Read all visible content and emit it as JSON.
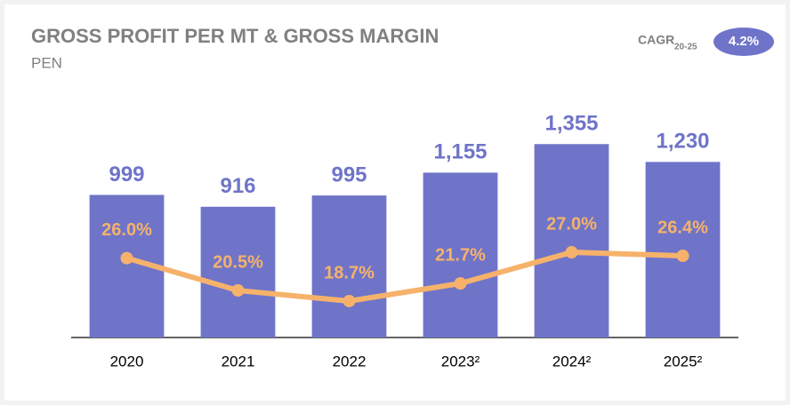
{
  "chart_data": {
    "type": "combo",
    "title": "GROSS PROFIT PER MT & GROSS MARGIN",
    "subtitle": "PEN",
    "cagr": {
      "label": "CAGR",
      "period": "20-25",
      "value": "4.2%"
    },
    "categories": [
      "2020",
      "2021",
      "2022",
      "2023²",
      "2024²",
      "2025²"
    ],
    "ylim": [
      0,
      1400
    ],
    "y2lim": [
      12.5,
      46.5
    ],
    "series": [
      {
        "type": "bar",
        "color": "#6f74c9",
        "values": [
          999,
          916,
          995,
          1155,
          1355,
          1230
        ],
        "value_labels": [
          "999",
          "916",
          "995",
          "1,155",
          "1,355",
          "1,230"
        ]
      },
      {
        "type": "line",
        "axis": "y2",
        "color": "#f6b26b",
        "values": [
          26.0,
          20.5,
          18.7,
          21.7,
          27.0,
          26.4
        ],
        "value_labels": [
          "26.0%",
          "20.5%",
          "18.7%",
          "21.7%",
          "27.0%",
          "26.4%"
        ]
      }
    ]
  }
}
